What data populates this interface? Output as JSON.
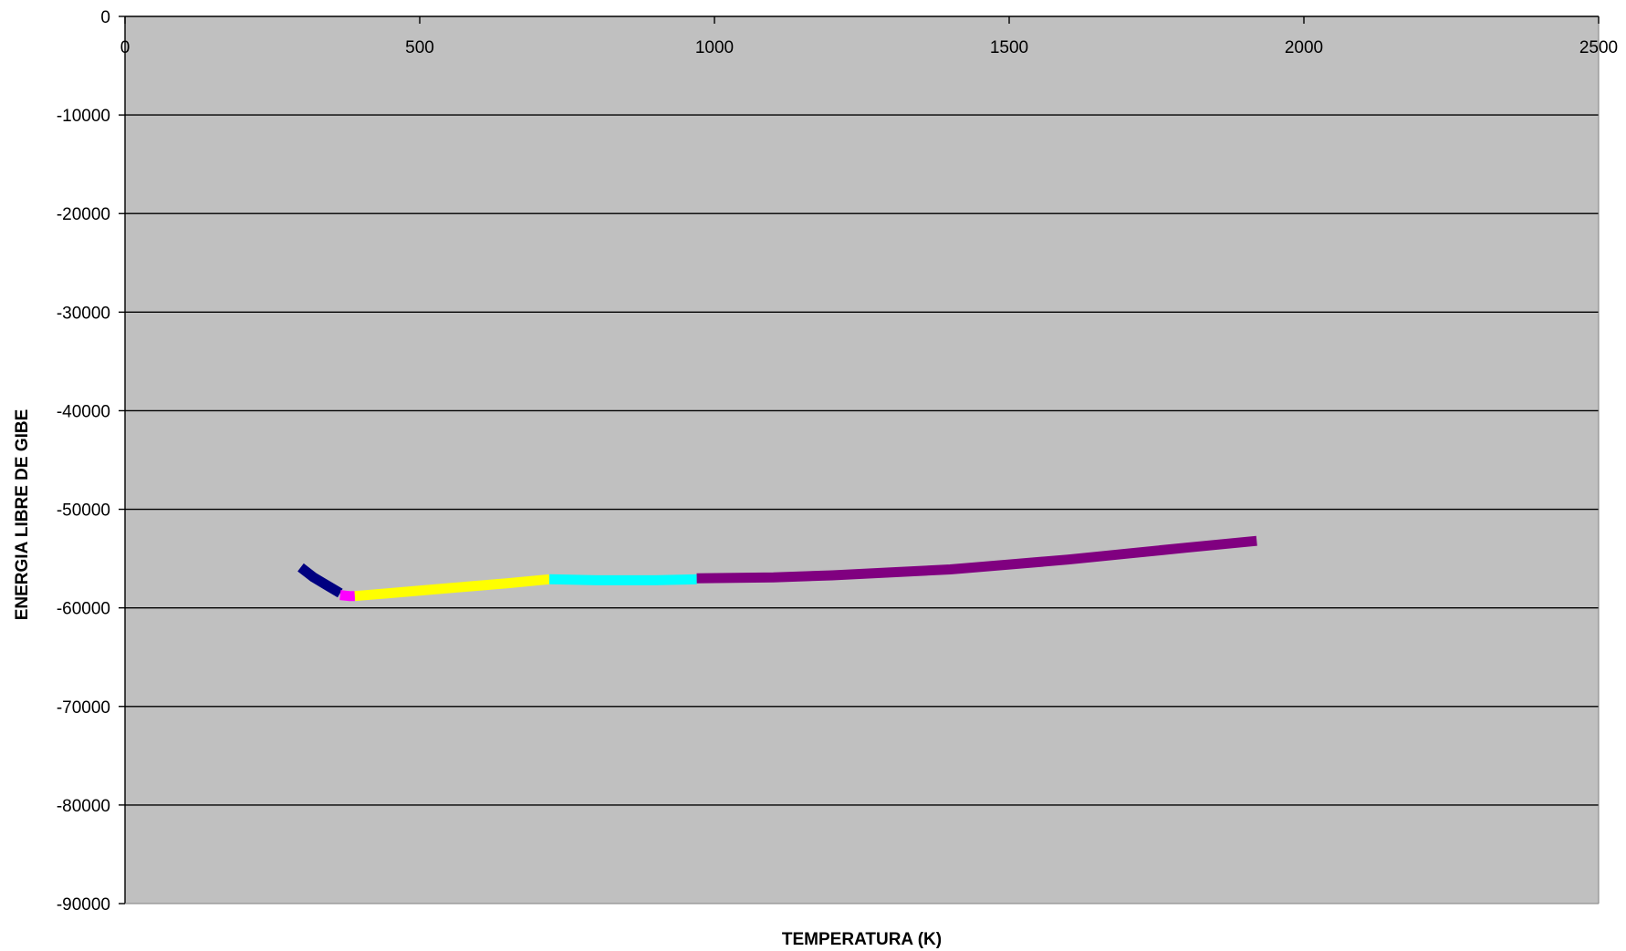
{
  "chart_data": {
    "type": "line",
    "title": "",
    "xlabel": "TEMPERATURA (K)",
    "ylabel": "ENERGIA LIBRE DE GIBE",
    "xlim": [
      0,
      2500
    ],
    "ylim": [
      -90000,
      0
    ],
    "x_ticks": [
      0,
      500,
      1000,
      1500,
      2000,
      2500
    ],
    "y_ticks": [
      0,
      -10000,
      -20000,
      -30000,
      -40000,
      -50000,
      -60000,
      -70000,
      -80000,
      -90000
    ],
    "x_tick_labels": [
      "0",
      "500",
      "1000",
      "1500",
      "2000",
      "2500"
    ],
    "y_tick_labels": [
      "0",
      "-10000",
      "-20000",
      "-30000",
      "-40000",
      "-50000",
      "-60000",
      "-70000",
      "-80000",
      "-90000"
    ],
    "grid": "horizontal",
    "legend": "none",
    "plot_background": "#c0c0c0",
    "series": [
      {
        "color": "#000080",
        "points": [
          [
            298,
            -55900
          ],
          [
            320,
            -56900
          ],
          [
            345,
            -57800
          ],
          [
            365,
            -58500
          ]
        ]
      },
      {
        "color": "#ff00ff",
        "points": [
          [
            365,
            -58700
          ],
          [
            380,
            -58800
          ],
          [
            390,
            -58800
          ]
        ]
      },
      {
        "color": "#ffff00",
        "points": [
          [
            390,
            -58800
          ],
          [
            450,
            -58500
          ],
          [
            550,
            -58000
          ],
          [
            650,
            -57500
          ],
          [
            720,
            -57100
          ]
        ]
      },
      {
        "color": "#00ffff",
        "points": [
          [
            720,
            -57100
          ],
          [
            800,
            -57200
          ],
          [
            900,
            -57200
          ],
          [
            970,
            -57100
          ]
        ]
      },
      {
        "color": "#800080",
        "points": [
          [
            970,
            -57000
          ],
          [
            1100,
            -56900
          ],
          [
            1200,
            -56700
          ],
          [
            1300,
            -56400
          ],
          [
            1400,
            -56100
          ],
          [
            1500,
            -55600
          ],
          [
            1600,
            -55100
          ],
          [
            1700,
            -54500
          ],
          [
            1800,
            -53900
          ],
          [
            1920,
            -53200
          ]
        ]
      }
    ]
  }
}
